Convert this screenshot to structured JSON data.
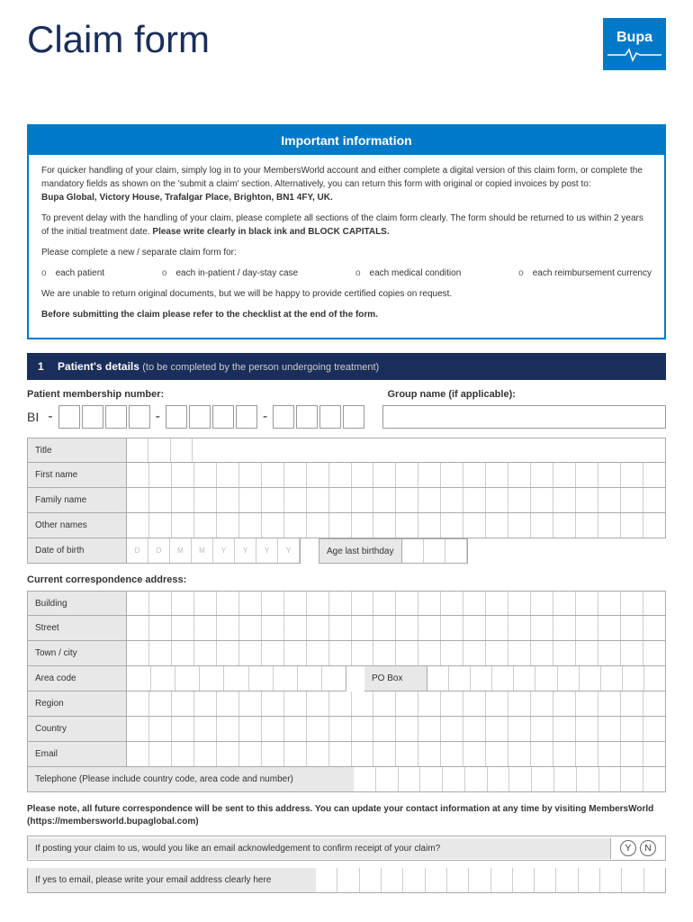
{
  "page_title": "Claim form",
  "logo_text": "Bupa",
  "info": {
    "header": "Important information",
    "p1a": "For quicker handling of your claim, simply log in to your MembersWorld account and either complete a digital version of this claim form, or complete the mandatory fields as shown on the 'submit a claim' section. Alternatively, you can return this form with original or copied invoices by post to:",
    "p1b": "Bupa Global, Victory House, Trafalgar Place, Brighton, BN1 4FY, UK.",
    "p2a": "To prevent delay with the handling of your claim, please complete all sections of the claim form clearly. The form should be returned to us within 2 years of the initial treatment date. ",
    "p2b": "Please write clearly in black ink and BLOCK CAPITALS.",
    "p3": "Please complete a new / separate claim form for:",
    "b1": "each patient",
    "b2": "each in-patient / day-stay case",
    "b3": "each medical condition",
    "b4": "each reimbursement currency",
    "p4": "We are unable to return original documents, but we will be happy to provide certified copies on request.",
    "p5": "Before submitting the claim please refer to the checklist at the end of the form."
  },
  "section1": {
    "num": "1",
    "title": "Patient's details",
    "subtitle": "(to be completed by the person undergoing treatment)",
    "membership_label": "Patient membership number:",
    "group_label": "Group name (if applicable):",
    "prefix": "BI",
    "fields": {
      "title": "Title",
      "first_name": "First name",
      "family_name": "Family name",
      "other_names": "Other names",
      "dob": "Date of birth",
      "age": "Age last birthday"
    },
    "dob_hints": [
      "D",
      "D",
      "M",
      "M",
      "Y",
      "Y",
      "Y",
      "Y"
    ],
    "address_heading": "Current correspondence address:",
    "address": {
      "building": "Building",
      "street": "Street",
      "town": "Town / city",
      "area": "Area code",
      "pobox": "PO Box",
      "region": "Region",
      "country": "Country",
      "email": "Email",
      "telephone": "Telephone (Please include country code, area code and number)"
    },
    "note": "Please note, all future correspondence will be sent to this address. You can update your contact information at any time by visiting MembersWorld (https://membersworld.bupaglobal.com)",
    "ack": "If posting your claim to us, would you like an email acknowledgement to confirm receipt of your claim?",
    "yes": "Y",
    "no": "N",
    "email_confirm": "If yes to email, please write your email address clearly here"
  },
  "colors": {
    "brand_blue": "#0079c8",
    "dark_navy": "#1a2e5c",
    "grey_bg": "#e8e8e8"
  }
}
